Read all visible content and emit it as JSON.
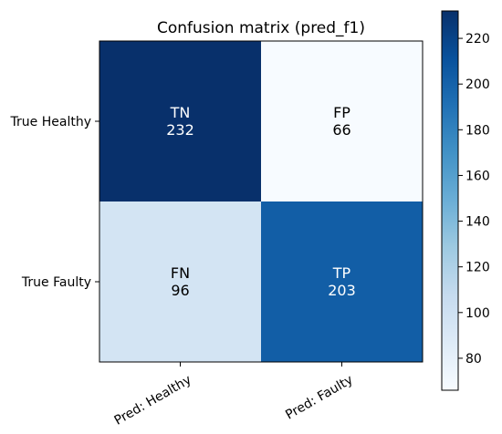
{
  "chart_data": {
    "type": "heatmap",
    "title": "Confusion matrix (pred_f1)",
    "x_categories": [
      "Pred: Healthy",
      "Pred: Faulty"
    ],
    "y_categories": [
      "True Healthy",
      "True Faulty"
    ],
    "cells": [
      [
        {
          "label": "TN",
          "value": 232
        },
        {
          "label": "FP",
          "value": 66
        }
      ],
      [
        {
          "label": "FN",
          "value": 96
        },
        {
          "label": "TP",
          "value": 203
        }
      ]
    ],
    "colormap": "Blues",
    "colorbar": {
      "range": [
        66,
        232
      ],
      "ticks": [
        80,
        100,
        120,
        140,
        160,
        180,
        200,
        220
      ]
    }
  }
}
